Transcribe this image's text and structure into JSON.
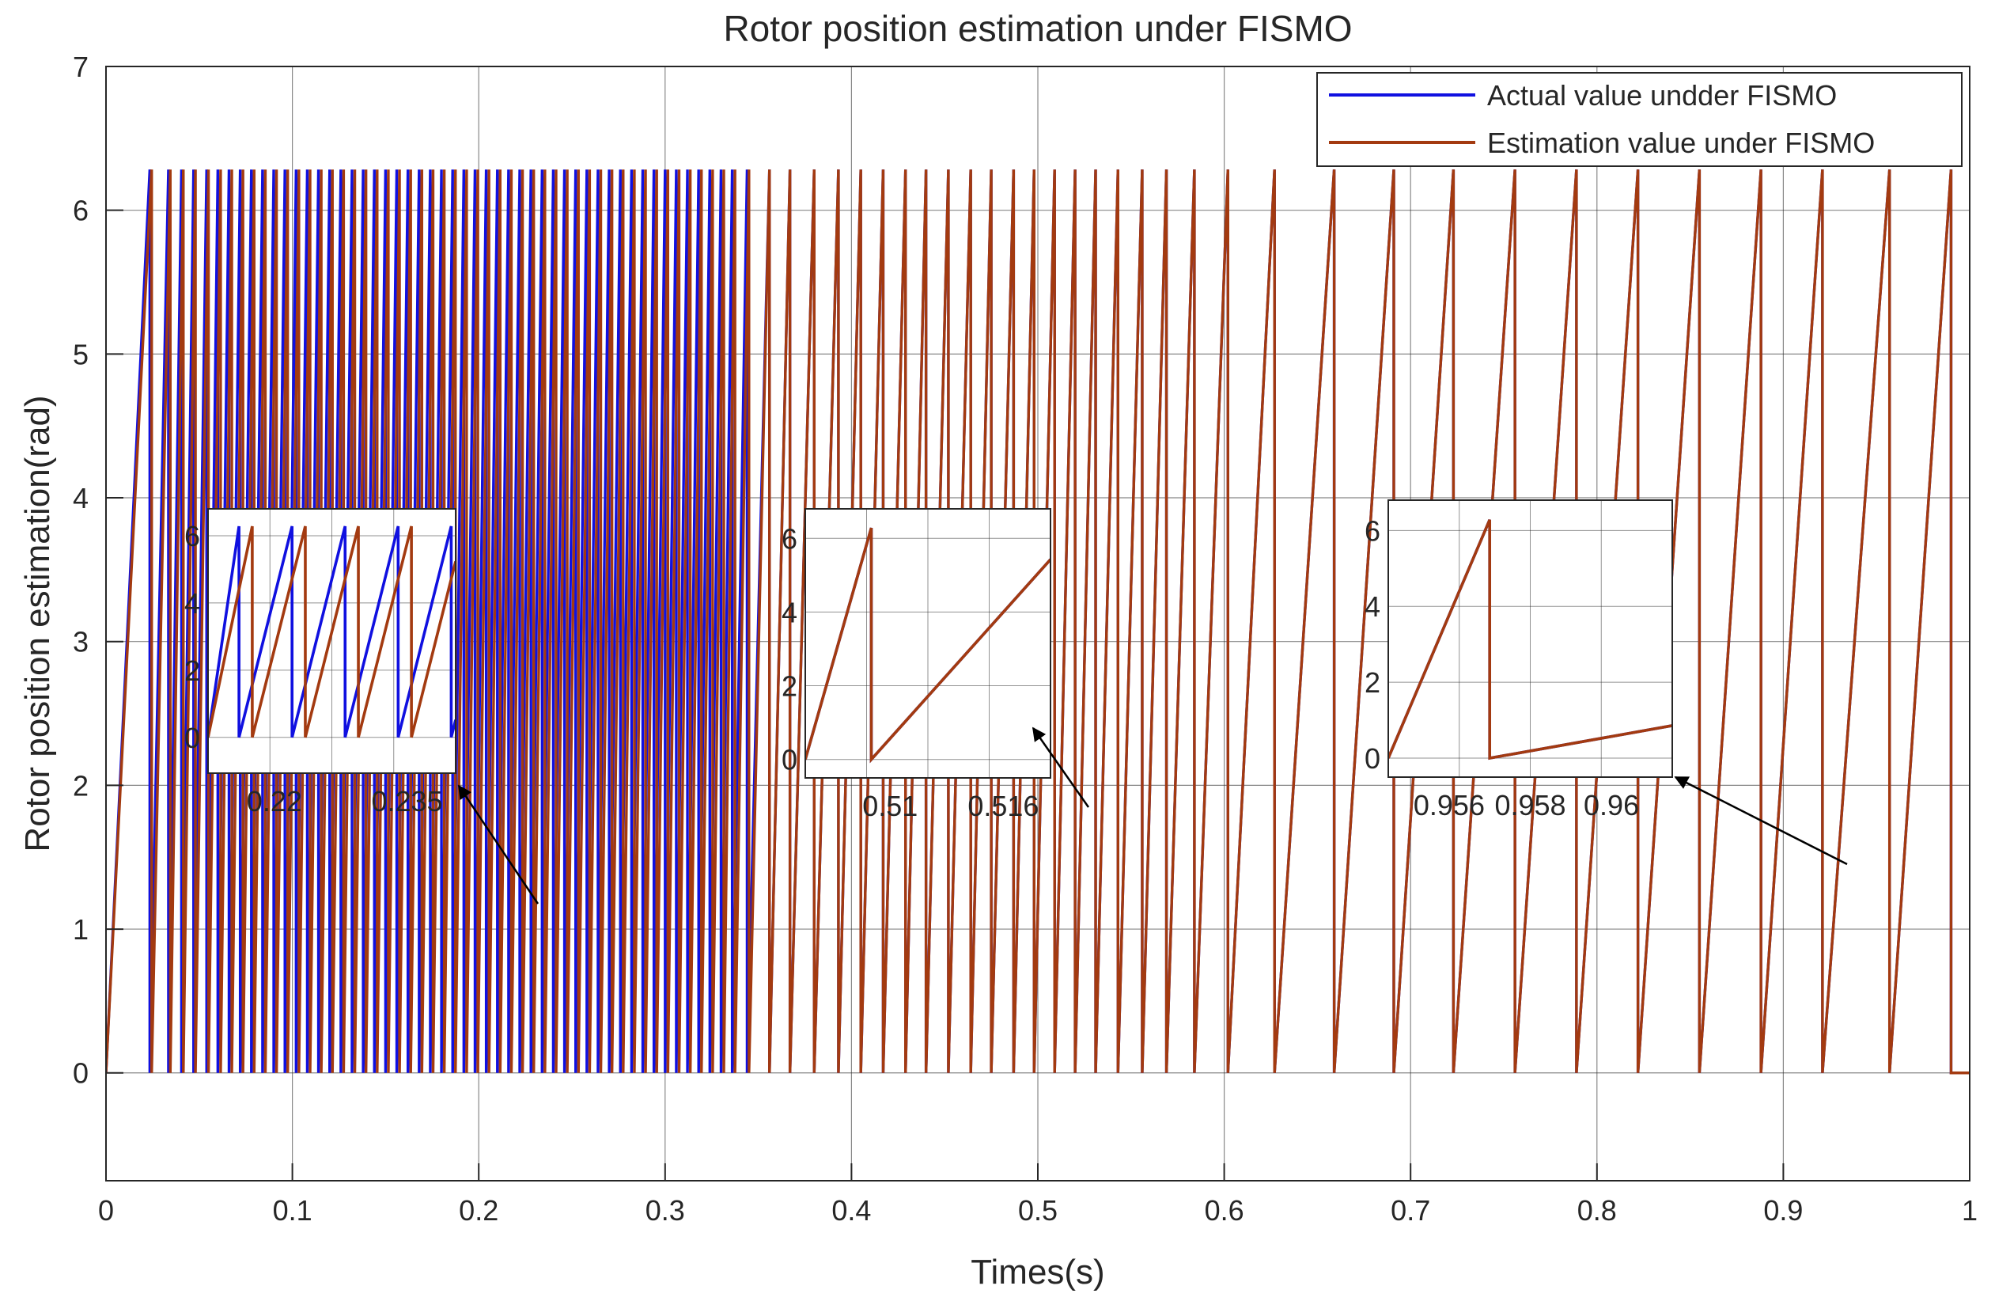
{
  "chart_data": {
    "type": "line",
    "title": "Rotor position estimation under FISMO",
    "xlabel": "Times(s)",
    "ylabel": "Rotor position estimation(rad)",
    "xlim": [
      0,
      1
    ],
    "ylim": [
      -0.75,
      7
    ],
    "x_ticks": [
      0,
      0.1,
      0.2,
      0.3,
      0.4,
      0.5,
      0.6,
      0.7,
      0.8,
      0.9,
      1
    ],
    "x_tick_labels": [
      "0",
      "0.1",
      "0.2",
      "0.3",
      "0.4",
      "0.5",
      "0.6",
      "0.7",
      "0.8",
      "0.9",
      "1"
    ],
    "y_ticks": [
      0,
      1,
      2,
      3,
      4,
      5,
      6,
      7
    ],
    "y_tick_labels": [
      "0",
      "1",
      "2",
      "3",
      "4",
      "5",
      "6",
      "7"
    ],
    "grid": true,
    "legend_position": "top-right",
    "colors": {
      "actual": "#1010e0",
      "estimation": "#a33a10"
    },
    "series": [
      {
        "name": "Actual value undder FISMO",
        "color": "#1010e0",
        "wrap_period": 6.2832,
        "wrap_times": [
          0.0235,
          0.0335,
          0.0405,
          0.047,
          0.054,
          0.06,
          0.066,
          0.072,
          0.078,
          0.084,
          0.09,
          0.096,
          0.102,
          0.108,
          0.114,
          0.12,
          0.126,
          0.132,
          0.138,
          0.144,
          0.15,
          0.156,
          0.162,
          0.168,
          0.174,
          0.18,
          0.186,
          0.192,
          0.198,
          0.204,
          0.21,
          0.216,
          0.222,
          0.228,
          0.234,
          0.24,
          0.246,
          0.252,
          0.258,
          0.264,
          0.27,
          0.276,
          0.282,
          0.288,
          0.294,
          0.3,
          0.306,
          0.312,
          0.318,
          0.324,
          0.33,
          0.336,
          0.344,
          0.356,
          0.367,
          0.38,
          0.393,
          0.405,
          0.417,
          0.429,
          0.44,
          0.452,
          0.464,
          0.475,
          0.487,
          0.498,
          0.509,
          0.52,
          0.531,
          0.543,
          0.556,
          0.569,
          0.584,
          0.602,
          0.627,
          0.659,
          0.691,
          0.723,
          0.756,
          0.789,
          0.822,
          0.855,
          0.888,
          0.921,
          0.957,
          0.99
        ]
      },
      {
        "name": "Estimation value under FISMO",
        "color": "#a33a10",
        "wrap_period": 6.2832,
        "wrap_times": [
          0.0245,
          0.0345,
          0.0415,
          0.048,
          0.055,
          0.0615,
          0.0675,
          0.0735,
          0.0795,
          0.0855,
          0.0915,
          0.0975,
          0.1035,
          0.1095,
          0.1155,
          0.1215,
          0.1275,
          0.1335,
          0.1395,
          0.1455,
          0.1515,
          0.1575,
          0.1635,
          0.1695,
          0.1755,
          0.1815,
          0.1875,
          0.1935,
          0.1995,
          0.2055,
          0.2115,
          0.2175,
          0.2235,
          0.2295,
          0.2355,
          0.2415,
          0.2475,
          0.2535,
          0.2595,
          0.2655,
          0.2715,
          0.2775,
          0.2835,
          0.2895,
          0.2955,
          0.3015,
          0.3075,
          0.3135,
          0.3195,
          0.3255,
          0.3315,
          0.3375,
          0.345,
          0.356,
          0.367,
          0.38,
          0.393,
          0.405,
          0.417,
          0.429,
          0.44,
          0.452,
          0.464,
          0.475,
          0.487,
          0.498,
          0.509,
          0.52,
          0.531,
          0.543,
          0.556,
          0.569,
          0.584,
          0.602,
          0.627,
          0.659,
          0.691,
          0.723,
          0.756,
          0.789,
          0.822,
          0.855,
          0.888,
          0.921,
          0.957,
          0.99
        ]
      }
    ],
    "insets": [
      {
        "xlim": [
          0.2125,
          0.2405
        ],
        "ylim": [
          -0.5,
          6.8
        ],
        "x_ticks": [
          0.22,
          0.235
        ],
        "x_tick_labels": [
          "0.22",
          "0.235"
        ],
        "y_ticks": [
          0,
          2,
          4,
          6
        ],
        "y_tick_labels": [
          "0",
          "2",
          "4",
          "6"
        ]
      },
      {
        "xlim": [
          0.5055,
          0.5185
        ],
        "ylim": [
          -0.5,
          6.8
        ],
        "x_ticks": [
          0.51,
          0.516
        ],
        "x_tick_labels": [
          "0.51",
          "0.516"
        ],
        "y_ticks": [
          0,
          2,
          4,
          6
        ],
        "y_tick_labels": [
          "0",
          "2",
          "4",
          "6"
        ]
      },
      {
        "xlim": [
          0.9545,
          0.9615
        ],
        "ylim": [
          -0.5,
          6.8
        ],
        "x_ticks": [
          0.956,
          0.958,
          0.96
        ],
        "x_tick_labels": [
          "0.956",
          "0.958",
          "0.96"
        ],
        "y_ticks": [
          0,
          2,
          4,
          6
        ],
        "y_tick_labels": [
          "0",
          "2",
          "4",
          "6"
        ]
      }
    ]
  }
}
